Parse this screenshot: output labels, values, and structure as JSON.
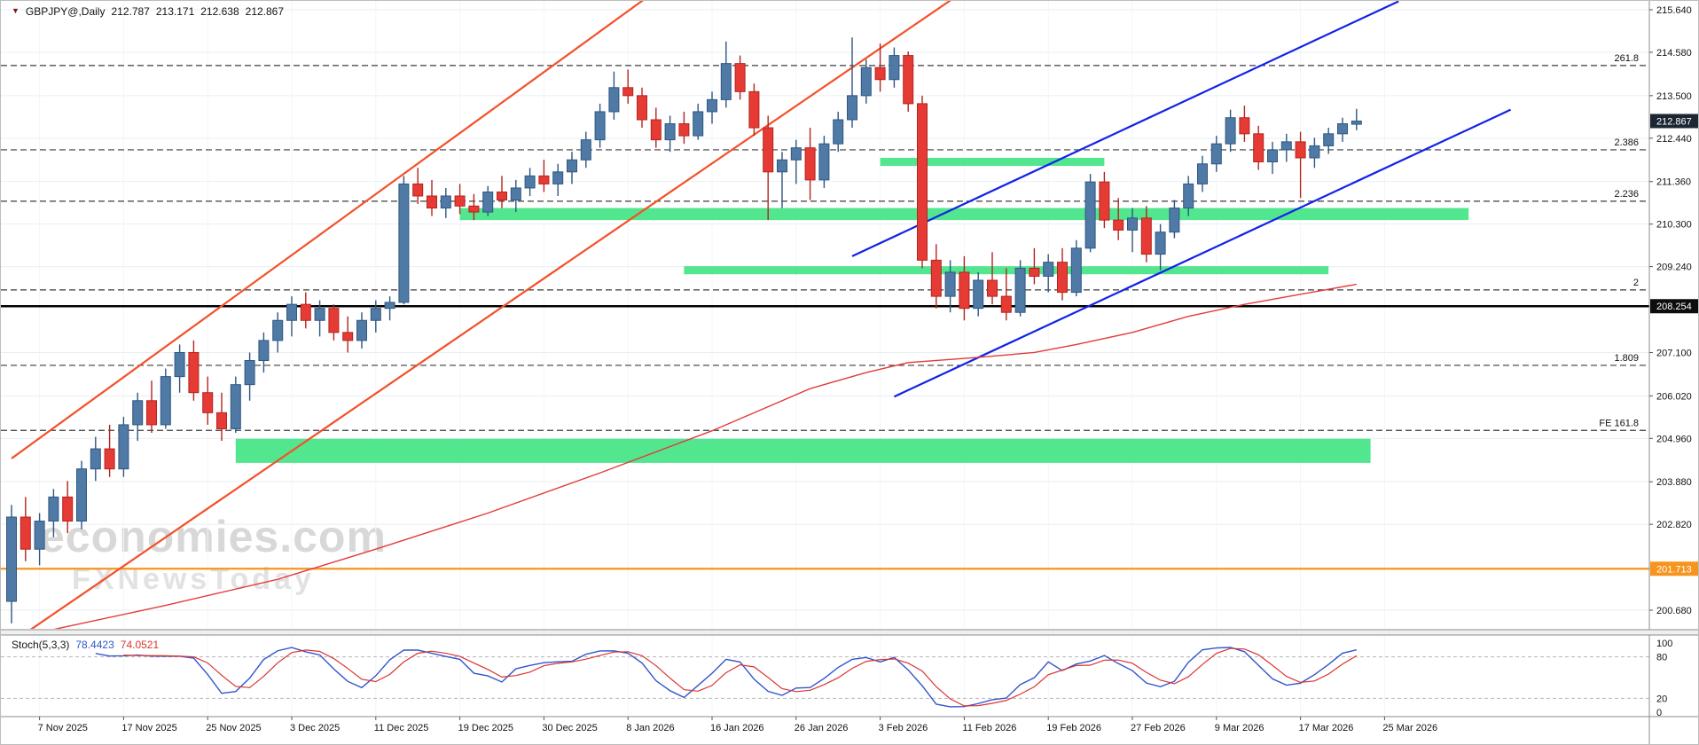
{
  "title": {
    "instrument": "GBPJPY@,Daily",
    "open": "212.787",
    "high": "213.171",
    "low": "212.638",
    "close": "212.867"
  },
  "watermark": {
    "line1": "economies.com",
    "line2": "FXNewsToday"
  },
  "colors": {
    "up": "#507aa6",
    "up_stroke": "#2f5680",
    "down": "#e63b35",
    "down_stroke": "#b3241e",
    "ma": "#e23b3b",
    "trend_red": "#f4502a",
    "trend_blue": "#1222e8",
    "zone_green": "#3fe383",
    "fib": "#3c3c3c",
    "black_line": "#000000",
    "orange_line": "#f7941e",
    "grid": "#e7eff5",
    "vgrid": "#f2f6f9",
    "stoch_main": "#3355cc",
    "stoch_signal": "#d93531",
    "stoch_level": "#b5b5b5",
    "axis_text": "#111111",
    "axis_border": "#8c8c8c",
    "tag_current_bg": "#1c2733",
    "tag_black_bg": "#0d0d0d",
    "tag_orange_bg": "#f7941e"
  },
  "price_axis": {
    "ticks": [
      {
        "label": "215.640",
        "price": 215.64
      },
      {
        "label": "214.580",
        "price": 214.58
      },
      {
        "label": "213.500",
        "price": 213.5
      },
      {
        "label": "212.440",
        "price": 212.44
      },
      {
        "label": "211.360",
        "price": 211.36
      },
      {
        "label": "210.300",
        "price": 210.3
      },
      {
        "label": "209.240",
        "price": 209.24
      },
      {
        "label": "207.100",
        "price": 207.1
      },
      {
        "label": "206.020",
        "price": 206.02
      },
      {
        "label": "204.960",
        "price": 204.96
      },
      {
        "label": "203.880",
        "price": 203.88
      },
      {
        "label": "202.820",
        "price": 202.82
      },
      {
        "label": "200.680",
        "price": 200.68
      }
    ],
    "tags": [
      {
        "text": "212.867",
        "price": 212.867,
        "type": "current"
      },
      {
        "text": "208.254",
        "price": 208.254,
        "type": "black"
      },
      {
        "text": "201.713",
        "price": 201.713,
        "type": "orange"
      }
    ]
  },
  "time_axis": {
    "first_index": 2,
    "index_step": 6,
    "labels": [
      "7 Nov 2025",
      "17 Nov 2025",
      "25 Nov 2025",
      "3 Dec 2025",
      "11 Dec 2025",
      "19 Dec 2025",
      "30 Dec 2025",
      "8 Jan 2026",
      "16 Jan 2026",
      "26 Jan 2026",
      "3 Feb 2026",
      "11 Feb 2026",
      "19 Feb 2026",
      "27 Feb 2026",
      "9 Mar 2026",
      "17 Mar 2026",
      "25 Mar 2026"
    ]
  },
  "chart_data": {
    "type": "candlestick",
    "symbol": "GBPJPY@",
    "timeframe": "Daily",
    "ylim": [
      199.9,
      215.86
    ],
    "current_price": 212.867,
    "candles": [
      [
        200.9,
        203.3,
        200.35,
        203.0
      ],
      [
        203.0,
        203.5,
        201.9,
        202.2
      ],
      [
        202.2,
        203.1,
        201.8,
        202.9
      ],
      [
        202.9,
        203.7,
        202.5,
        203.5
      ],
      [
        203.5,
        203.9,
        202.6,
        202.9
      ],
      [
        202.9,
        204.4,
        202.7,
        204.2
      ],
      [
        204.2,
        205.0,
        203.9,
        204.7
      ],
      [
        204.7,
        205.3,
        204.0,
        204.2
      ],
      [
        204.2,
        205.5,
        204.0,
        205.3
      ],
      [
        205.3,
        206.1,
        204.9,
        205.9
      ],
      [
        205.9,
        206.4,
        205.1,
        205.3
      ],
      [
        205.3,
        206.7,
        205.2,
        206.5
      ],
      [
        206.5,
        207.3,
        206.1,
        207.1
      ],
      [
        207.1,
        207.4,
        205.9,
        206.1
      ],
      [
        206.1,
        206.5,
        205.3,
        205.6
      ],
      [
        205.6,
        206.1,
        204.9,
        205.2
      ],
      [
        205.2,
        206.5,
        205.1,
        206.3
      ],
      [
        206.3,
        207.1,
        205.9,
        206.9
      ],
      [
        206.9,
        207.6,
        206.6,
        207.4
      ],
      [
        207.4,
        208.1,
        207.1,
        207.9
      ],
      [
        207.9,
        208.5,
        207.5,
        208.3
      ],
      [
        208.3,
        208.6,
        207.7,
        207.9
      ],
      [
        207.9,
        208.4,
        207.5,
        208.2
      ],
      [
        208.2,
        208.3,
        207.4,
        207.6
      ],
      [
        207.6,
        208.0,
        207.1,
        207.4
      ],
      [
        207.4,
        208.1,
        207.2,
        207.9
      ],
      [
        207.9,
        208.4,
        207.6,
        208.2
      ],
      [
        208.2,
        208.5,
        207.9,
        208.35
      ],
      [
        208.35,
        211.5,
        208.3,
        211.3
      ],
      [
        211.3,
        211.7,
        210.8,
        211.0
      ],
      [
        211.0,
        211.4,
        210.5,
        210.7
      ],
      [
        210.7,
        211.2,
        210.45,
        211.0
      ],
      [
        211.0,
        211.3,
        210.55,
        210.75
      ],
      [
        210.75,
        211.05,
        210.4,
        210.6
      ],
      [
        210.6,
        211.25,
        210.5,
        211.1
      ],
      [
        211.1,
        211.5,
        210.7,
        210.9
      ],
      [
        210.9,
        211.4,
        210.6,
        211.2
      ],
      [
        211.2,
        211.7,
        211.0,
        211.5
      ],
      [
        211.5,
        211.9,
        211.1,
        211.3
      ],
      [
        211.3,
        211.8,
        211.0,
        211.6
      ],
      [
        211.6,
        212.1,
        211.3,
        211.9
      ],
      [
        211.9,
        212.6,
        211.7,
        212.4
      ],
      [
        212.4,
        213.3,
        212.2,
        213.1
      ],
      [
        213.1,
        214.1,
        212.9,
        213.7
      ],
      [
        213.7,
        214.15,
        213.3,
        213.5
      ],
      [
        213.5,
        213.7,
        212.7,
        212.9
      ],
      [
        212.9,
        213.2,
        212.2,
        212.4
      ],
      [
        212.4,
        213.0,
        212.1,
        212.8
      ],
      [
        212.8,
        213.1,
        212.3,
        212.5
      ],
      [
        212.5,
        213.3,
        212.4,
        213.1
      ],
      [
        213.1,
        213.6,
        212.8,
        213.4
      ],
      [
        213.4,
        214.85,
        213.2,
        214.3
      ],
      [
        214.3,
        214.5,
        213.4,
        213.6
      ],
      [
        213.6,
        213.8,
        212.5,
        212.7
      ],
      [
        212.7,
        213.0,
        210.4,
        211.6
      ],
      [
        211.6,
        212.1,
        210.7,
        211.9
      ],
      [
        211.9,
        212.4,
        211.3,
        212.2
      ],
      [
        212.2,
        212.7,
        210.9,
        211.4
      ],
      [
        211.4,
        212.5,
        211.2,
        212.3
      ],
      [
        212.3,
        213.1,
        212.1,
        212.9
      ],
      [
        212.9,
        214.95,
        212.7,
        213.5
      ],
      [
        213.5,
        214.4,
        213.3,
        214.2
      ],
      [
        214.2,
        214.8,
        213.6,
        213.9
      ],
      [
        213.9,
        214.7,
        213.7,
        214.5
      ],
      [
        214.5,
        214.6,
        213.1,
        213.3
      ],
      [
        213.3,
        213.5,
        209.2,
        209.4
      ],
      [
        209.4,
        209.8,
        208.2,
        208.5
      ],
      [
        208.5,
        209.4,
        208.1,
        209.1
      ],
      [
        209.1,
        209.5,
        207.9,
        208.2
      ],
      [
        208.2,
        209.1,
        208.0,
        208.9
      ],
      [
        208.9,
        209.6,
        208.3,
        208.5
      ],
      [
        208.5,
        209.2,
        207.9,
        208.1
      ],
      [
        208.1,
        209.4,
        208.0,
        209.2
      ],
      [
        209.2,
        209.7,
        208.8,
        209.0
      ],
      [
        209.0,
        209.55,
        208.6,
        209.35
      ],
      [
        209.35,
        209.7,
        208.4,
        208.6
      ],
      [
        208.6,
        209.9,
        208.5,
        209.7
      ],
      [
        209.7,
        211.55,
        209.6,
        211.35
      ],
      [
        211.35,
        211.6,
        210.2,
        210.4
      ],
      [
        210.4,
        210.95,
        209.9,
        210.15
      ],
      [
        210.15,
        210.7,
        209.6,
        210.45
      ],
      [
        210.45,
        210.75,
        209.35,
        209.55
      ],
      [
        209.55,
        210.3,
        209.15,
        210.1
      ],
      [
        210.1,
        210.9,
        209.95,
        210.7
      ],
      [
        210.7,
        211.5,
        210.5,
        211.3
      ],
      [
        211.3,
        212.0,
        211.1,
        211.8
      ],
      [
        211.8,
        212.5,
        211.6,
        212.3
      ],
      [
        212.3,
        213.15,
        212.1,
        212.95
      ],
      [
        212.95,
        213.25,
        212.35,
        212.55
      ],
      [
        212.55,
        212.75,
        211.65,
        211.85
      ],
      [
        211.85,
        212.35,
        211.55,
        212.15
      ],
      [
        212.15,
        212.55,
        211.85,
        212.35
      ],
      [
        212.35,
        212.6,
        210.95,
        211.95
      ],
      [
        211.95,
        212.45,
        211.7,
        212.25
      ],
      [
        212.25,
        212.7,
        212.05,
        212.55
      ],
      [
        212.55,
        212.95,
        212.35,
        212.8
      ],
      [
        212.787,
        213.171,
        212.638,
        212.867
      ]
    ],
    "ma_points": [
      [
        3,
        200.2
      ],
      [
        11,
        200.8
      ],
      [
        19,
        201.45
      ],
      [
        26,
        202.2
      ],
      [
        34,
        203.1
      ],
      [
        42,
        204.1
      ],
      [
        50,
        205.15
      ],
      [
        57,
        206.2
      ],
      [
        61,
        206.6
      ],
      [
        64,
        206.85
      ],
      [
        69,
        206.98
      ],
      [
        73,
        207.1
      ],
      [
        76,
        207.3
      ],
      [
        80,
        207.6
      ],
      [
        84,
        208.0
      ],
      [
        88,
        208.3
      ],
      [
        92,
        208.55
      ],
      [
        96,
        208.8
      ]
    ],
    "fib_levels": [
      {
        "label": "261.8",
        "price": 214.25
      },
      {
        "label": "2.386",
        "price": 212.15
      },
      {
        "label": "2.236",
        "price": 210.87
      },
      {
        "label": "2",
        "price": 208.66
      },
      {
        "label": "1.809",
        "price": 206.78
      },
      {
        "label": "FE 161.8",
        "price": 205.16
      }
    ],
    "hlines": [
      {
        "price": 208.254,
        "style": "black"
      },
      {
        "price": 201.713,
        "style": "orange"
      }
    ],
    "zones": [
      {
        "i1": 62,
        "i2": 78,
        "p1": 211.75,
        "p2": 211.95
      },
      {
        "i1": 32,
        "i2": 104,
        "p1": 210.4,
        "p2": 210.7
      },
      {
        "i1": 48,
        "i2": 94,
        "p1": 209.05,
        "p2": 209.25
      },
      {
        "i1": 16,
        "i2": 97,
        "p1": 204.35,
        "p2": 204.95
      }
    ],
    "trendlines": [
      {
        "color": "red",
        "p": [
          [
            0,
            204.46
          ],
          [
            48,
            216.62
          ]
        ]
      },
      {
        "color": "red",
        "p": [
          [
            0,
            199.87
          ],
          [
            68,
            216.11
          ]
        ]
      },
      {
        "color": "blue",
        "p": [
          [
            60,
            209.5
          ],
          [
            99,
            215.85
          ]
        ]
      },
      {
        "color": "blue",
        "p": [
          [
            63,
            206.0
          ],
          [
            107,
            213.15
          ]
        ]
      }
    ],
    "stoch": {
      "label": "Stoch(5,3,3)",
      "main_value": "78.4423",
      "signal_value": "74.0521",
      "k": 5,
      "slowing": 3,
      "d": 3,
      "levels": [
        80,
        20
      ],
      "axis_labels": [
        {
          "label": "100",
          "value": 100
        },
        {
          "label": "80",
          "value": 80
        },
        {
          "label": "20",
          "value": 20
        },
        {
          "label": "0",
          "value": 0
        }
      ]
    }
  }
}
